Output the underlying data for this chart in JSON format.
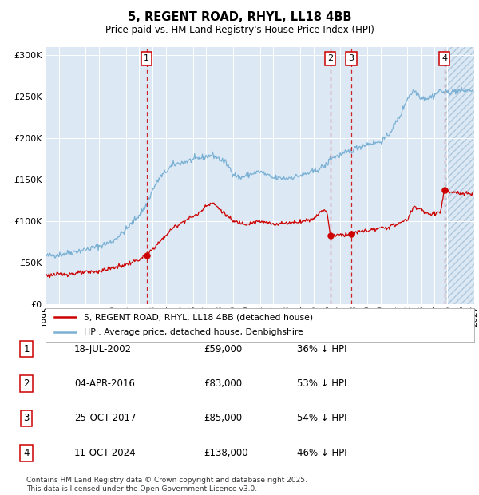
{
  "title": "5, REGENT ROAD, RHYL, LL18 4BB",
  "subtitle": "Price paid vs. HM Land Registry's House Price Index (HPI)",
  "legend_label_red": "5, REGENT ROAD, RHYL, LL18 4BB (detached house)",
  "legend_label_blue": "HPI: Average price, detached house, Denbighshire",
  "transactions": [
    {
      "num": 1,
      "date": "18-JUL-2002",
      "date_x": 2002.54,
      "price": 59000,
      "label": "36% ↓ HPI"
    },
    {
      "num": 2,
      "date": "04-APR-2016",
      "date_x": 2016.26,
      "price": 83000,
      "label": "53% ↓ HPI"
    },
    {
      "num": 3,
      "date": "25-OCT-2017",
      "date_x": 2017.82,
      "price": 85000,
      "label": "54% ↓ HPI"
    },
    {
      "num": 4,
      "date": "11-OCT-2024",
      "date_x": 2024.78,
      "price": 138000,
      "label": "46% ↓ HPI"
    }
  ],
  "row_data": [
    [
      "1",
      "18-JUL-2002",
      "£59,000",
      "36% ↓ HPI"
    ],
    [
      "2",
      "04-APR-2016",
      "£83,000",
      "53% ↓ HPI"
    ],
    [
      "3",
      "25-OCT-2017",
      "£85,000",
      "54% ↓ HPI"
    ],
    [
      "4",
      "11-OCT-2024",
      "£138,000",
      "46% ↓ HPI"
    ]
  ],
  "footnote1": "Contains HM Land Registry data © Crown copyright and database right 2025.",
  "footnote2": "This data is licensed under the Open Government Licence v3.0.",
  "xmin": 1995.0,
  "xmax": 2027.0,
  "ymin": 0,
  "ymax": 310000,
  "bg_color": "#dce9f5",
  "red_color": "#cc0000",
  "blue_color": "#7ab0d4",
  "hatch_start": 2024.78
}
